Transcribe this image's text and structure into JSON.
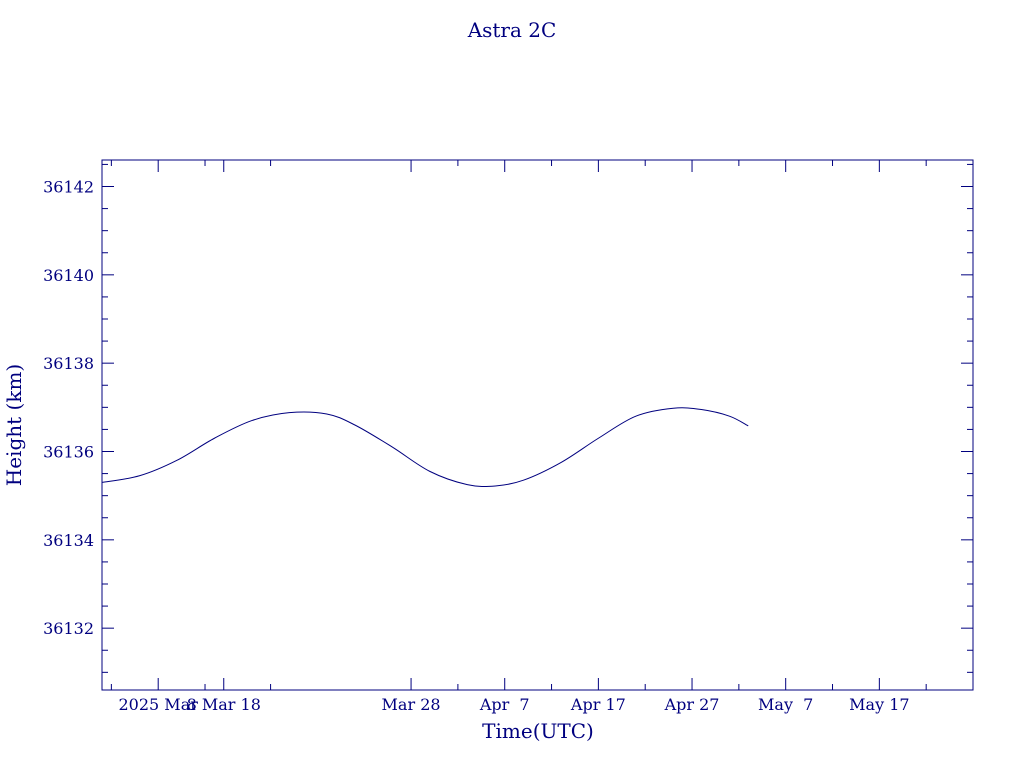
{
  "colors": {
    "ink": "#00007f",
    "background": "#ffffff"
  },
  "chart_data": {
    "type": "line",
    "title": "Astra 2C",
    "xlabel": "Time(UTC)",
    "ylabel": "Height (km)",
    "x_unit": "date",
    "xlim": [
      "2025-02-23",
      "2025-05-27"
    ],
    "ylim": [
      36130.6,
      36142.6
    ],
    "x_ticks": [
      {
        "date": "2025-03-01",
        "label": "2025 Mar"
      },
      {
        "date": "2025-03-08",
        "label": "8 Mar 18"
      },
      {
        "date": "2025-03-28",
        "label": "Mar 28"
      },
      {
        "date": "2025-04-07",
        "label": "Apr  7"
      },
      {
        "date": "2025-04-17",
        "label": "Apr 17"
      },
      {
        "date": "2025-04-27",
        "label": "Apr 27"
      },
      {
        "date": "2025-05-07",
        "label": "May  7"
      },
      {
        "date": "2025-05-17",
        "label": "May 17"
      }
    ],
    "y_ticks": [
      36132,
      36134,
      36136,
      36138,
      36140,
      36142
    ],
    "grid": false,
    "series": [
      {
        "x": [
          "2025-02-23",
          "2025-02-27",
          "2025-03-03",
          "2025-03-07",
          "2025-03-11",
          "2025-03-15",
          "2025-03-19",
          "2025-03-22",
          "2025-03-26",
          "2025-03-30",
          "2025-04-03",
          "2025-04-06",
          "2025-04-09",
          "2025-04-13",
          "2025-04-17",
          "2025-04-21",
          "2025-04-25",
          "2025-04-28",
          "2025-05-01",
          "2025-05-03"
        ],
        "y": [
          36135.3,
          36135.45,
          36135.8,
          36136.3,
          36136.7,
          36136.88,
          36136.85,
          36136.6,
          36136.1,
          36135.55,
          36135.25,
          36135.22,
          36135.35,
          36135.75,
          36136.3,
          36136.8,
          36136.98,
          36136.95,
          36136.8,
          36136.58
        ]
      }
    ]
  }
}
